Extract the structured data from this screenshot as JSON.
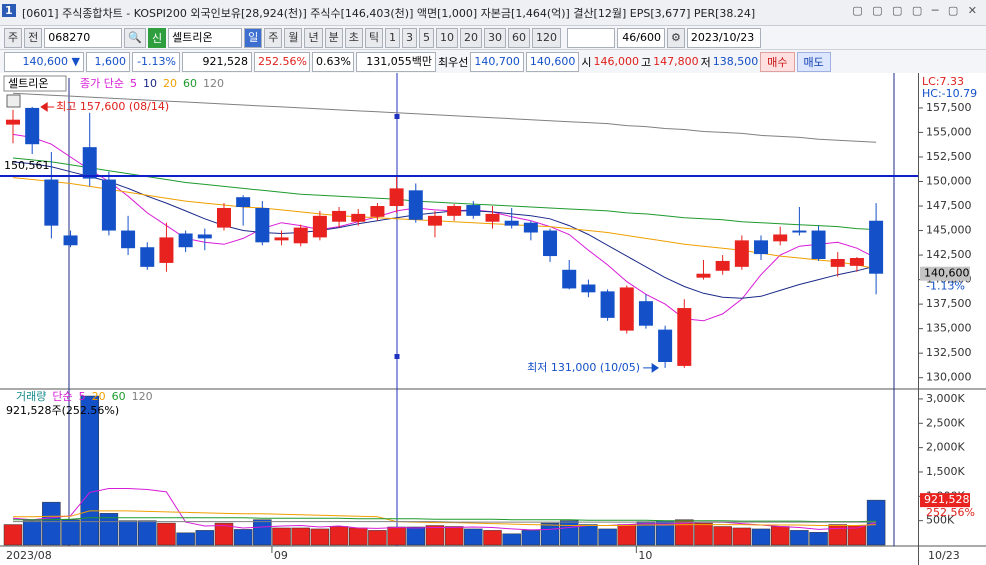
{
  "window": {
    "number": "1",
    "title": "[0601] 주식종합차트 - KOSPI200 외국인보유[28,924(천)] 주식수[146,403(천)] 액면[1,000] 자본금[1,464(억)] 결산[12월] EPS[3,677] PER[38.24]"
  },
  "toolbar": {
    "market": "주",
    "mode": "전",
    "code": "068270",
    "badge": "신",
    "name": "셀트리온",
    "periods": [
      "일",
      "주",
      "월",
      "년",
      "분",
      "초",
      "틱"
    ],
    "intervals": [
      "1",
      "3",
      "5",
      "10",
      "20",
      "30",
      "60",
      "120"
    ],
    "count": "46/600",
    "date": "2023/10/23"
  },
  "quote": {
    "price": "140,600",
    "arrow": "▼",
    "change": "1,600",
    "rate": "-1.13%",
    "volume": "921,528",
    "volume_rate": "252.56%",
    "turnover": "0.63%",
    "amount": "131,055백만",
    "best_label": "최우선",
    "ask": "140,700",
    "bid": "140,600",
    "open_label": "시",
    "open": "146,000",
    "high_label": "고",
    "high": "147,800",
    "low_label": "저",
    "low": "138,500",
    "buy": "매수",
    "sell": "매도"
  },
  "chart_data": [
    {
      "type": "candlestick",
      "name": "셀트리온",
      "ma_label": "종가 단순",
      "categories": [
        "2023/08",
        null,
        null,
        null,
        null,
        null,
        null,
        null,
        null,
        null,
        null,
        null,
        null,
        null,
        "09",
        null,
        null,
        null,
        null,
        null,
        null,
        null,
        null,
        null,
        null,
        null,
        null,
        null,
        null,
        null,
        null,
        null,
        null,
        "10",
        null,
        null,
        null,
        null,
        null,
        null,
        null,
        null,
        null,
        null,
        null,
        "10/23"
      ],
      "open": [
        155800,
        157500,
        150200,
        144500,
        153500,
        150200,
        145000,
        143300,
        141700,
        144700,
        144600,
        145300,
        148400,
        147300,
        144000,
        143700,
        144300,
        145900,
        145900,
        146400,
        147500,
        149100,
        145500,
        146500,
        147600,
        145900,
        146000,
        145800,
        145000,
        141000,
        139500,
        138800,
        134800,
        137800,
        134900,
        131200,
        140200,
        140900,
        141300,
        144000,
        143900,
        145000,
        145000,
        141300,
        141400,
        146000
      ],
      "high": [
        157300,
        157600,
        153000,
        145000,
        157000,
        151000,
        146500,
        143800,
        145800,
        145000,
        145200,
        147800,
        148600,
        148000,
        145000,
        145600,
        147000,
        147400,
        147200,
        147800,
        150500,
        149800,
        147000,
        147700,
        148000,
        147500,
        147300,
        146000,
        145200,
        142000,
        140000,
        139000,
        139400,
        138500,
        135300,
        138000,
        142000,
        142500,
        144500,
        144500,
        145400,
        147400,
        145500,
        142800,
        142300,
        147800
      ],
      "low": [
        153900,
        152800,
        144200,
        143300,
        149500,
        144500,
        142500,
        141000,
        140800,
        142800,
        143000,
        145000,
        145500,
        143500,
        143500,
        143400,
        144000,
        145300,
        145500,
        146000,
        146800,
        145800,
        144300,
        146000,
        146200,
        145200,
        145200,
        144000,
        141800,
        139000,
        138200,
        135800,
        134500,
        135000,
        131000,
        131000,
        140000,
        140500,
        141000,
        142000,
        143500,
        144500,
        141900,
        140300,
        140800,
        138500
      ],
      "close": [
        156300,
        153800,
        145500,
        143500,
        150300,
        145000,
        143200,
        141300,
        144300,
        143300,
        144200,
        147300,
        147400,
        143800,
        144300,
        145300,
        146500,
        147000,
        146700,
        147500,
        149300,
        146100,
        146500,
        147500,
        146500,
        146700,
        145500,
        144800,
        142400,
        139100,
        138700,
        136100,
        139200,
        135300,
        131600,
        137100,
        140600,
        141900,
        144000,
        142600,
        144600,
        144800,
        142100,
        142100,
        142200,
        140600
      ],
      "up_color": "#e8231f",
      "down_color": "#1450c8",
      "series": [
        {
          "name": "5",
          "color": "#d81bd8",
          "values": [
            154800,
            154500,
            153800,
            152500,
            151200,
            150000,
            148500,
            146800,
            145500,
            144200,
            143800,
            143600,
            144200,
            145200,
            145800,
            145500,
            145100,
            145400,
            145900,
            146400,
            147000,
            147300,
            147100,
            147000,
            147100,
            146900,
            146400,
            146000,
            145400,
            144600,
            143000,
            141500,
            139800,
            138500,
            137500,
            136000,
            135800,
            136500,
            138000,
            140500,
            142500,
            143400,
            143600,
            143800,
            143200,
            142200
          ]
        },
        {
          "name": "10",
          "color": "#1c2a8a",
          "values": [
            152000,
            151800,
            151500,
            151000,
            150500,
            150000,
            149300,
            148500,
            147800,
            147000,
            146200,
            145500,
            145000,
            144800,
            144700,
            144800,
            145000,
            145300,
            145700,
            146000,
            146300,
            146600,
            146800,
            147000,
            147000,
            146900,
            146700,
            146500,
            146200,
            145500,
            144600,
            143500,
            142400,
            141300,
            140200,
            139300,
            138600,
            138200,
            138100,
            138300,
            138900,
            139500,
            140000,
            140500,
            140900,
            141400
          ]
        },
        {
          "name": "20",
          "color": "#f0a000",
          "values": [
            150400,
            150200,
            150000,
            149800,
            149500,
            149200,
            148900,
            148600,
            148300,
            148000,
            147800,
            147600,
            147400,
            147300,
            147100,
            146900,
            146700,
            146500,
            146400,
            146300,
            146200,
            146100,
            146000,
            145900,
            145800,
            145700,
            145600,
            145500,
            145400,
            145200,
            145000,
            144800,
            144500,
            144200,
            143900,
            143600,
            143400,
            143200,
            143000,
            142700,
            142400,
            142200,
            142000,
            141800,
            141500,
            141100
          ]
        },
        {
          "name": "60",
          "color": "#1e9a2e",
          "values": [
            152400,
            152200,
            152000,
            151700,
            151400,
            151100,
            150800,
            150500,
            150200,
            149900,
            149700,
            149500,
            149300,
            149100,
            148900,
            148700,
            148600,
            148500,
            148400,
            148300,
            148200,
            148000,
            147900,
            147800,
            147700,
            147600,
            147500,
            147400,
            147300,
            147200,
            147100,
            147000,
            146800,
            146700,
            146500,
            146300,
            146200,
            146100,
            145900,
            145800,
            145700,
            145600,
            145500,
            145400,
            145200,
            145100
          ]
        },
        {
          "name": "120",
          "color": "#808080",
          "values": [
            159000,
            158900,
            158800,
            158700,
            158600,
            158500,
            158400,
            158300,
            158200,
            158100,
            158000,
            157900,
            157800,
            157700,
            157600,
            157500,
            157400,
            157300,
            157200,
            157100,
            157000,
            156900,
            156800,
            156700,
            156600,
            156500,
            156400,
            156300,
            156200,
            156100,
            156000,
            155900,
            155700,
            155600,
            155400,
            155300,
            155100,
            155000,
            154900,
            154700,
            154600,
            154500,
            154300,
            154200,
            154100,
            154000
          ]
        }
      ],
      "ylim": [
        128950,
        160550
      ],
      "yticks": [
        {
          "value": 130000,
          "label": "130,000"
        },
        {
          "value": 132500,
          "label": "132,500"
        },
        {
          "value": 135000,
          "label": "135,000"
        },
        {
          "value": 137500,
          "label": "137,500"
        },
        {
          "value": 140000,
          "label": "140,000"
        },
        {
          "value": 142500,
          "label": "142,500"
        },
        {
          "value": 145000,
          "label": "145,000"
        },
        {
          "value": 147500,
          "label": "147,500"
        },
        {
          "value": 150000,
          "label": "150,000"
        },
        {
          "value": 152500,
          "label": "152,500"
        },
        {
          "value": 155000,
          "label": "155,000"
        },
        {
          "value": 157500,
          "label": "157,500"
        }
      ],
      "grid": false,
      "high_label": "최고 157,600 (08/14)",
      "low_label": "최저 131,000 (10/05)",
      "hline": {
        "value": 150561,
        "label": "150,561",
        "color": "#1020c8"
      },
      "lc": "LC:7.33",
      "hc": "HC:-10.79",
      "last_label": "140,600",
      "change_label": "-1.13%"
    },
    {
      "type": "bar",
      "title": "거래량",
      "ma_label": "단순",
      "summary": "921,528주(252.56%)",
      "values": [
        420000,
        500000,
        880000,
        520000,
        3060000,
        650000,
        500000,
        500000,
        450000,
        250000,
        300000,
        450000,
        320000,
        520000,
        350000,
        350000,
        330000,
        380000,
        350000,
        300000,
        370000,
        370000,
        400000,
        380000,
        330000,
        300000,
        230000,
        300000,
        450000,
        500000,
        420000,
        330000,
        420000,
        480000,
        500000,
        520000,
        450000,
        380000,
        350000,
        330000,
        380000,
        300000,
        260000,
        420000,
        400000,
        921528
      ],
      "series": [
        {
          "name": "5",
          "color": "#d81bd8",
          "values": [
            550000,
            520000,
            560000,
            600000,
            1080000,
            1160000,
            1160000,
            1140000,
            1090000,
            470000,
            390000,
            400000,
            350000,
            370000,
            390000,
            400000,
            370000,
            390000,
            350000,
            340000,
            360000,
            350000,
            360000,
            360000,
            370000,
            360000,
            330000,
            310000,
            320000,
            360000,
            400000,
            400000,
            420000,
            440000,
            430000,
            450000,
            470000,
            470000,
            440000,
            410000,
            380000,
            360000,
            320000,
            340000,
            350000,
            460000
          ]
        },
        {
          "name": "20",
          "color": "#f0a000",
          "values": [
            580000,
            580000,
            590000,
            590000,
            700000,
            700000,
            700000,
            690000,
            680000,
            670000,
            660000,
            650000,
            640000,
            640000,
            630000,
            620000,
            610000,
            600000,
            590000,
            580000,
            480000,
            470000,
            460000,
            460000,
            450000,
            440000,
            430000,
            420000,
            410000,
            400000,
            400000,
            400000,
            400000,
            410000,
            410000,
            420000,
            420000,
            420000,
            420000,
            410000,
            410000,
            410000,
            400000,
            400000,
            400000,
            420000
          ]
        },
        {
          "name": "60",
          "color": "#1e9a2e",
          "values": [
            520000,
            520000,
            520000,
            530000,
            560000,
            560000,
            560000,
            560000,
            560000,
            560000,
            560000,
            560000,
            560000,
            550000,
            550000,
            550000,
            550000,
            550000,
            540000,
            540000,
            540000,
            540000,
            530000,
            530000,
            530000,
            530000,
            520000,
            520000,
            520000,
            520000,
            510000,
            510000,
            510000,
            510000,
            500000,
            500000,
            500000,
            500000,
            490000,
            490000,
            490000,
            490000,
            480000,
            480000,
            480000,
            490000
          ]
        },
        {
          "name": "120",
          "color": "#808080",
          "values": [
            480000,
            480000,
            480000,
            480000,
            480000,
            480000,
            480000,
            480000,
            480000,
            480000,
            480000,
            480000,
            480000,
            480000,
            480000,
            480000,
            480000,
            480000,
            480000,
            480000,
            480000,
            480000,
            480000,
            470000,
            470000,
            470000,
            470000,
            470000,
            470000,
            470000,
            470000,
            470000,
            470000,
            470000,
            470000,
            470000,
            470000,
            470000,
            470000,
            470000,
            470000,
            470000,
            470000,
            470000,
            470000,
            470000
          ]
        }
      ],
      "ylim": [
        0,
        3163000
      ],
      "yticks": [
        {
          "value": 500000,
          "label": "500K"
        },
        {
          "value": 1000000,
          "label": "1,000K"
        },
        {
          "value": 1500000,
          "label": "1,500K"
        },
        {
          "value": 2000000,
          "label": "2,000K"
        },
        {
          "value": 2500000,
          "label": "2,500K"
        },
        {
          "value": 3000000,
          "label": "3,000K"
        }
      ],
      "grid": false,
      "last_label": "921,528",
      "ratio_label": "252.56%"
    }
  ]
}
